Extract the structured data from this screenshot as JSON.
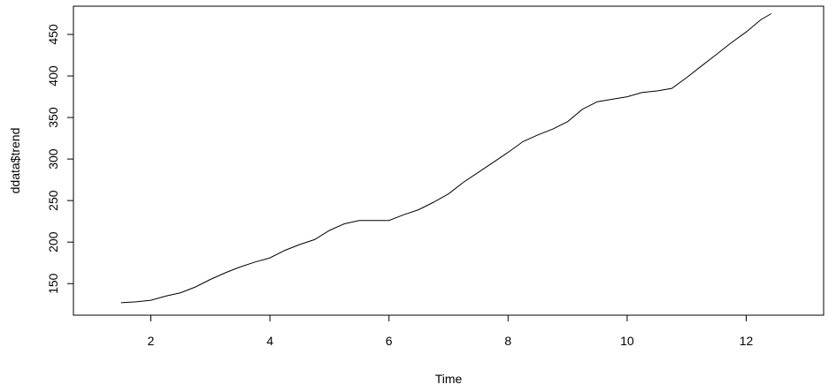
{
  "chart_data": {
    "type": "line",
    "title": "",
    "xlabel": "Time",
    "ylabel": "ddata$trend",
    "xlim": [
      0.7,
      13.3
    ],
    "ylim": [
      112,
      484
    ],
    "x_ticks": [
      2,
      4,
      6,
      8,
      10,
      12
    ],
    "y_ticks": [
      150,
      200,
      250,
      300,
      350,
      400,
      450
    ],
    "grid": false,
    "legend": "none",
    "line_color": "#000000",
    "series": [
      {
        "x": [
          1.5,
          1.75,
          2.0,
          2.25,
          2.5,
          2.75,
          3.0,
          3.25,
          3.5,
          3.75,
          4.0,
          4.25,
          4.5,
          4.75,
          5.0,
          5.25,
          5.5,
          5.75,
          6.0,
          6.25,
          6.5,
          6.75,
          7.0,
          7.25,
          7.5,
          7.75,
          8.0,
          8.25,
          8.5,
          8.75,
          9.0,
          9.25,
          9.5,
          9.75,
          10.0,
          10.25,
          10.5,
          10.75,
          11.0,
          11.25,
          11.5,
          11.75,
          12.0,
          12.25,
          12.42
        ],
        "values": [
          127,
          128,
          130,
          135,
          139,
          146,
          155,
          163,
          170,
          176,
          181,
          190,
          197,
          203,
          214,
          222,
          226,
          226,
          226,
          233,
          239,
          248,
          258,
          272,
          284,
          296,
          308,
          321,
          329,
          336,
          345,
          360,
          369,
          372,
          375,
          380,
          382,
          385,
          398,
          412,
          426,
          440,
          453,
          468,
          475
        ]
      }
    ]
  }
}
